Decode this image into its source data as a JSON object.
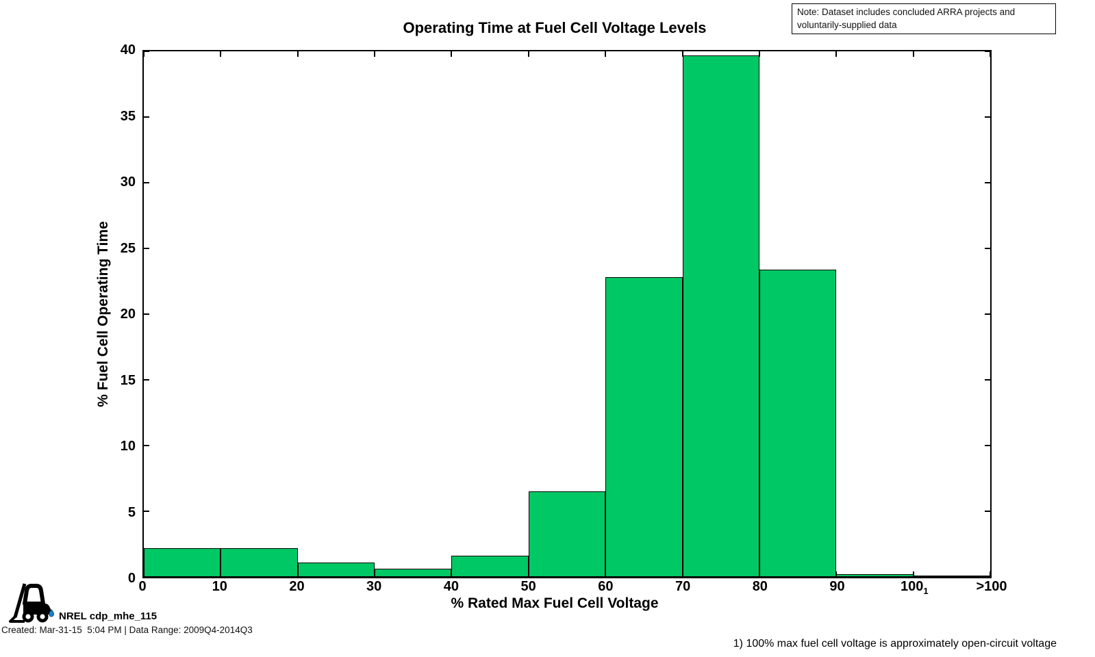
{
  "note": {
    "line1": "Note: Dataset includes concluded ARRA projects and",
    "line2": "voluntarily-supplied data"
  },
  "footer": {
    "logo_label": "NREL cdp_mhe_115",
    "created": "Created: Mar-31-15  5:04 PM | Data Range: 2009Q4-2014Q3",
    "footnote": "1) 100% max fuel cell voltage is approximately open-circuit voltage"
  },
  "chart_data": {
    "type": "bar",
    "title": "Operating Time at Fuel Cell Voltage Levels",
    "xlabel": "% Rated Max Fuel Cell Voltage",
    "ylabel": "% Fuel Cell Operating Time",
    "bar_color": "#00c864",
    "bar_edge_color": "#000000",
    "grid": "off",
    "ylim": [
      0,
      40
    ],
    "yticks": [
      0,
      5,
      10,
      15,
      20,
      25,
      30,
      35,
      40
    ],
    "xticks": [
      {
        "label": "0"
      },
      {
        "label": "10"
      },
      {
        "label": "20"
      },
      {
        "label": "30"
      },
      {
        "label": "40"
      },
      {
        "label": "50"
      },
      {
        "label": "60"
      },
      {
        "label": "70"
      },
      {
        "label": "80"
      },
      {
        "label": "90"
      },
      {
        "label": "100",
        "footnote_marker": "1"
      },
      {
        "label": ">100"
      }
    ],
    "categories": [
      "0-10",
      "10-20",
      "20-30",
      "30-40",
      "40-50",
      "50-60",
      "60-70",
      "70-80",
      "80-90",
      "90-100",
      ">100"
    ],
    "values": [
      2.2,
      2.2,
      1.1,
      0.6,
      1.6,
      6.5,
      22.8,
      39.7,
      23.4,
      0.2,
      0.05
    ]
  }
}
